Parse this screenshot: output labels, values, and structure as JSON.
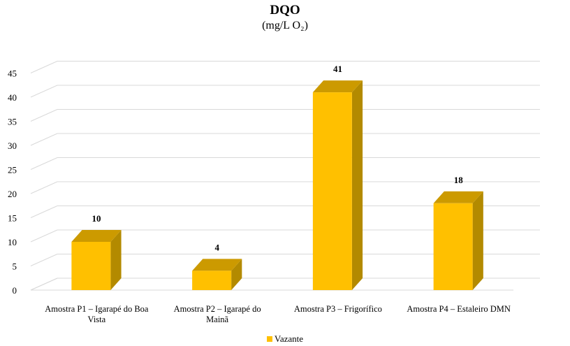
{
  "chart_data": {
    "type": "bar",
    "title": "DQO",
    "subtitle": "(mg/L O₂)",
    "categories": [
      [
        "Amostra  P1 –  Igarapé  do Boa",
        "Vista"
      ],
      [
        "Amostra  P2 –  Igarapé  do",
        "Mainã"
      ],
      [
        "Amostra  P3 – Frigorífico"
      ],
      [
        "Amostra  P4 – Estaleiro  DMN"
      ]
    ],
    "series": [
      {
        "name": "Vazante",
        "values": [
          10,
          4,
          41,
          18
        ]
      }
    ],
    "data_labels": [
      "10",
      "4",
      "41",
      "18"
    ],
    "ylim": [
      0,
      45
    ],
    "yticks": [
      "0",
      "5",
      "10",
      "15",
      "20",
      "25",
      "30",
      "35",
      "40",
      "45"
    ],
    "grid": true,
    "legend_position": "bottom",
    "colors": {
      "front": "#FFC000",
      "side": "#B38A00",
      "top": "#CC9A00",
      "grid": "#D9D9D9"
    }
  }
}
